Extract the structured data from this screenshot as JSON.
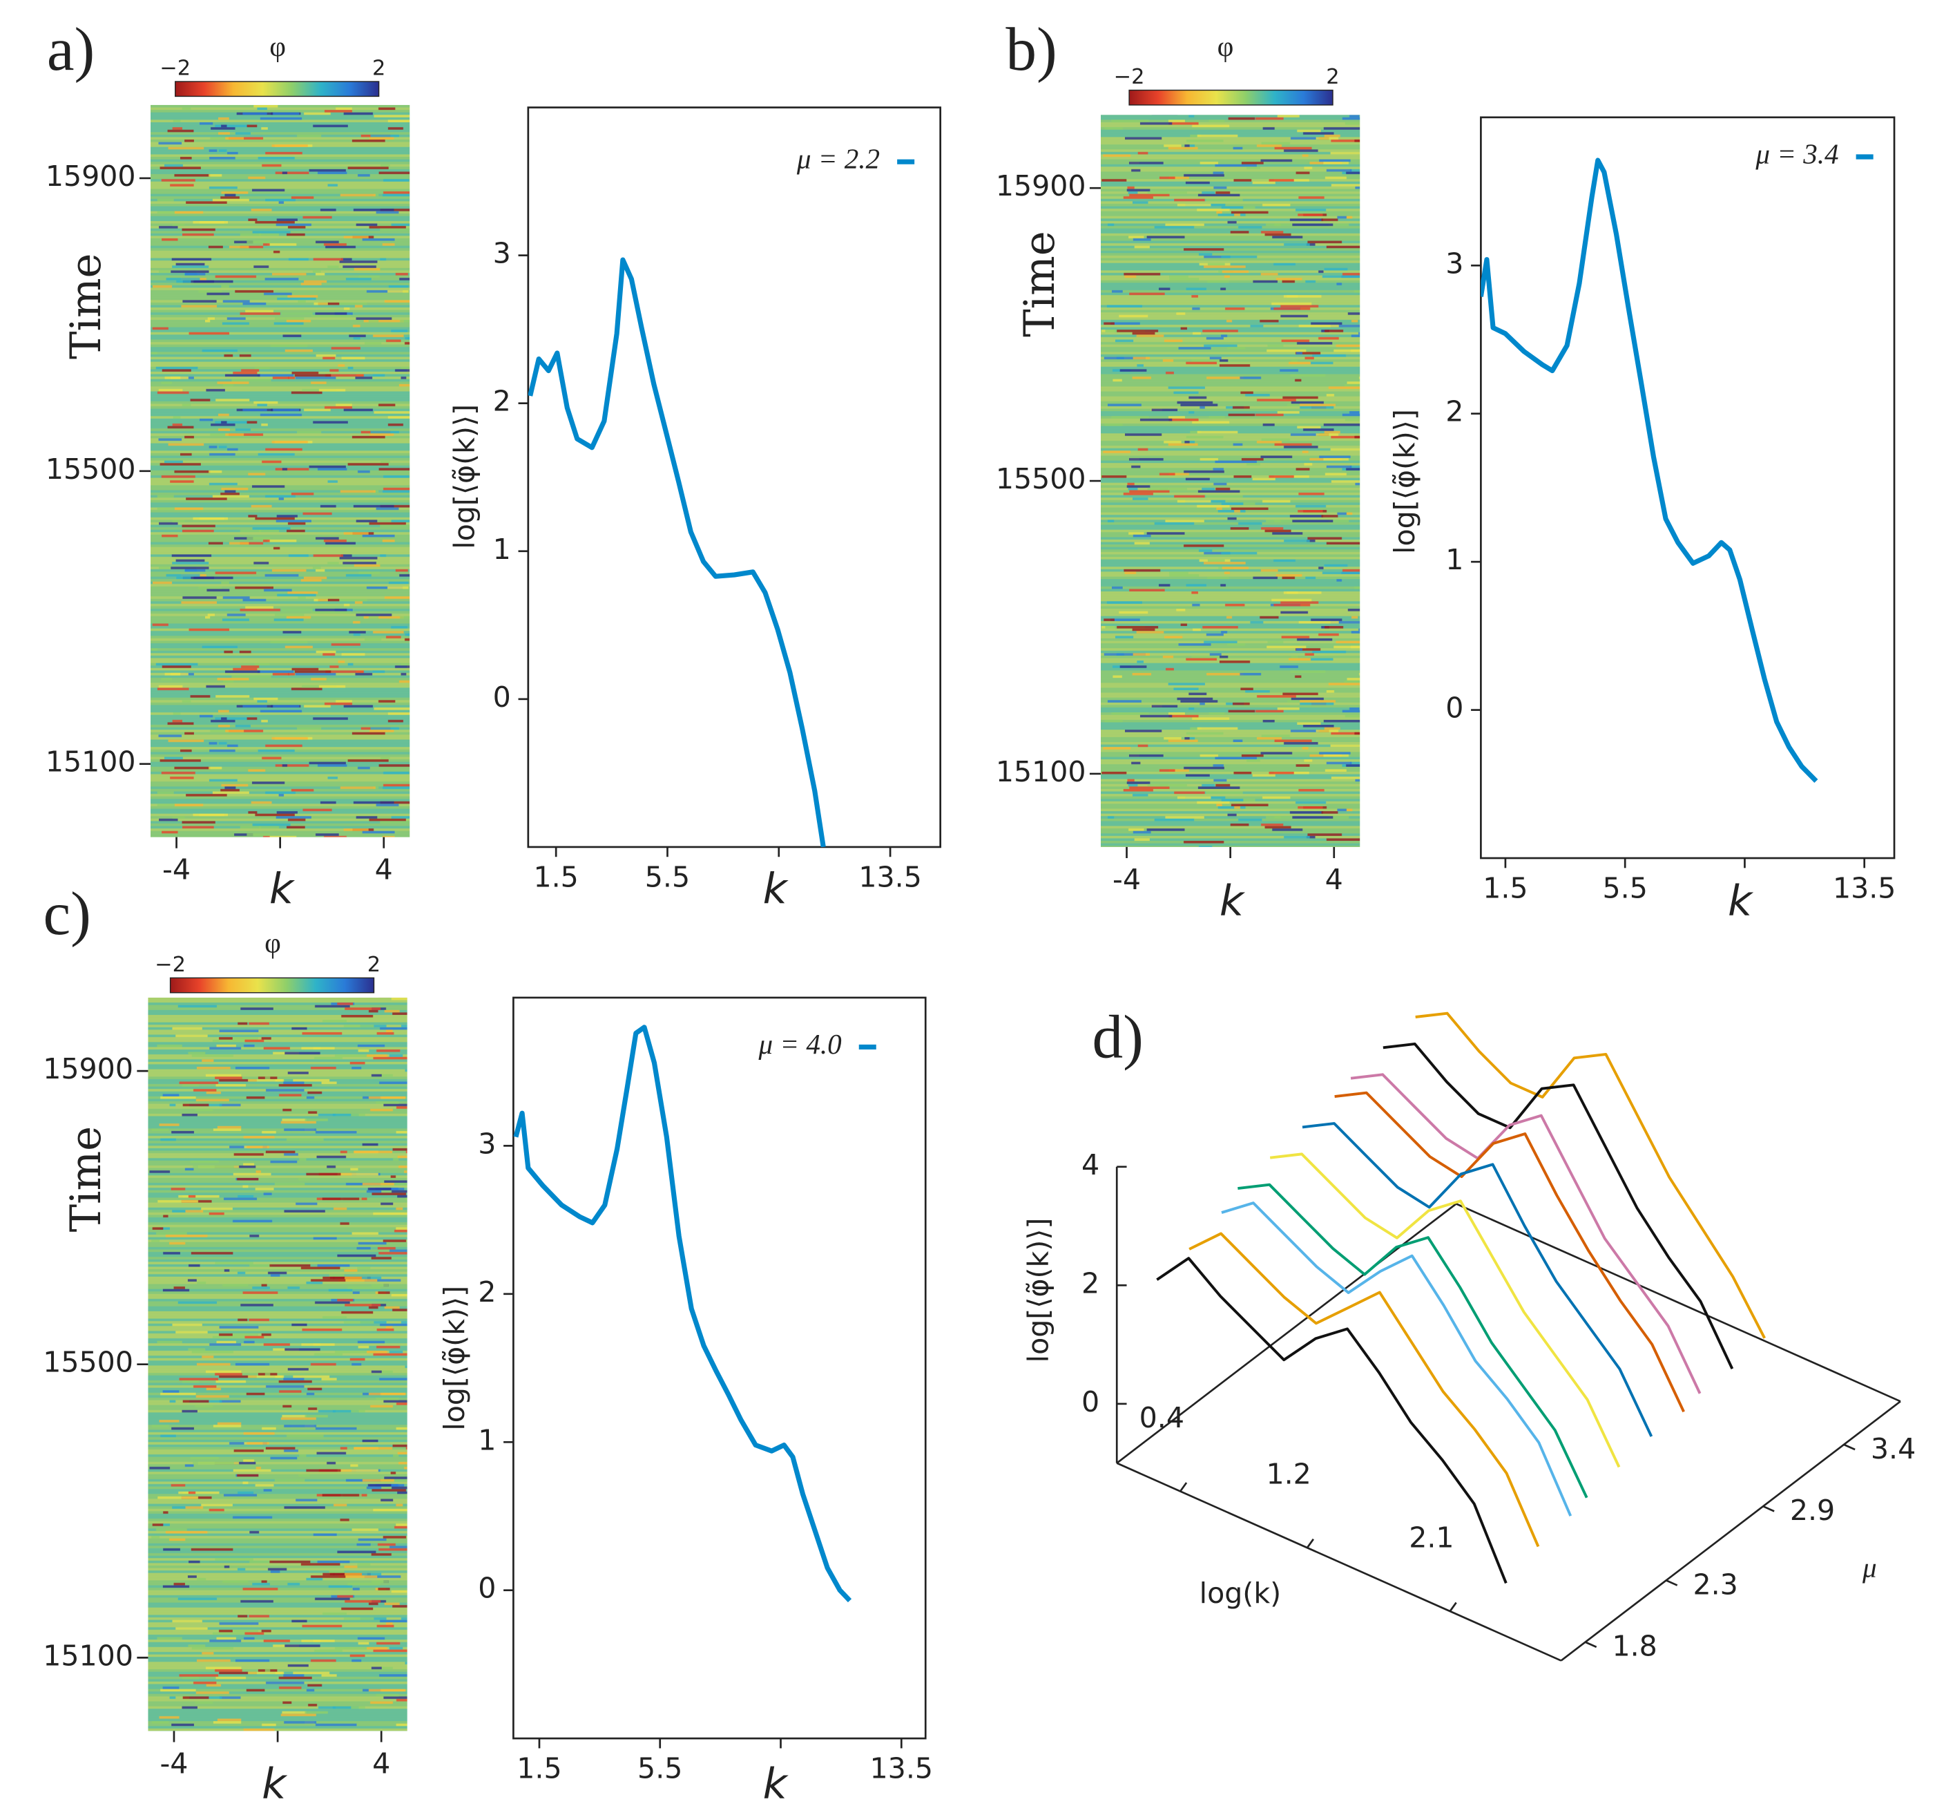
{
  "chart_data": [
    {
      "type": "heatmap",
      "panel_label": "a)",
      "colorbar_title": "φ",
      "clim": [
        -2,
        2
      ],
      "colorbar_ticks": [
        {
          "value": -2,
          "label": "−2"
        },
        2
      ],
      "colormap": [
        "#9e1a1a",
        "#e8432a",
        "#f7b733",
        "#e9e24b",
        "#8fcf6a",
        "#2fb3c8",
        "#2a7bd8",
        "#2b2f8f"
      ],
      "xlabel": "k",
      "xlim": [
        -5,
        5
      ],
      "xticks": [
        -4,
        4
      ],
      "xticks_unlabeled": [
        0
      ],
      "ylabel": "Time",
      "ylim": [
        15000,
        16000
      ],
      "yticks": [
        15900,
        15500,
        15100
      ]
    },
    {
      "type": "line",
      "xlabel": "k",
      "ylabel": "log[⟨φ̃(k)⟩]",
      "xlim": [
        0.5,
        15.3
      ],
      "xticks": [
        1.5,
        5.5,
        13.5
      ],
      "xticks_unlabeled": [
        9.5
      ],
      "ylim": [
        -1,
        4
      ],
      "yticks": [
        0,
        1,
        2,
        3
      ],
      "legend": "upper right",
      "series": [
        {
          "name": "μ = 2.2",
          "color": "#0088cc",
          "x": [
            0.57,
            0.88,
            1.23,
            1.54,
            1.9,
            2.26,
            2.79,
            3.23,
            3.68,
            3.9,
            4.21,
            4.57,
            5.01,
            5.46,
            5.9,
            6.34,
            6.79,
            7.23,
            7.9,
            8.57,
            9.01,
            9.46,
            9.9,
            10.34,
            10.79,
            11.1
          ],
          "values": [
            2.05,
            2.3,
            2.22,
            2.34,
            1.97,
            1.76,
            1.7,
            1.88,
            2.47,
            2.97,
            2.84,
            2.51,
            2.13,
            1.8,
            1.47,
            1.13,
            0.93,
            0.83,
            0.84,
            0.86,
            0.72,
            0.47,
            0.18,
            -0.2,
            -0.62,
            -1.0
          ]
        }
      ]
    },
    {
      "type": "heatmap",
      "panel_label": "b)",
      "colorbar_title": "φ",
      "clim": [
        -2,
        2
      ],
      "colorbar_ticks": [
        {
          "value": -2,
          "label": "−2"
        },
        2
      ],
      "colormap": [
        "#9e1a1a",
        "#e8432a",
        "#f7b733",
        "#e9e24b",
        "#8fcf6a",
        "#2fb3c8",
        "#2a7bd8",
        "#2b2f8f"
      ],
      "xlabel": "k",
      "xlim": [
        -5,
        5
      ],
      "xticks": [
        -4,
        4
      ],
      "xticks_unlabeled": [
        0
      ],
      "ylabel": "Time",
      "ylim": [
        15000,
        16000
      ],
      "yticks": [
        15900,
        15500,
        15100
      ]
    },
    {
      "type": "line",
      "xlabel": "k",
      "ylabel": "log[⟨φ̃(k)⟩]",
      "xlim": [
        0.68,
        14.5
      ],
      "xticks": [
        1.5,
        5.5,
        13.5
      ],
      "xticks_unlabeled": [
        9.5
      ],
      "ylim": [
        -1,
        4
      ],
      "yticks": [
        0,
        1,
        2,
        3
      ],
      "legend": "upper right",
      "series": [
        {
          "name": "μ = 3.4",
          "color": "#0088cc",
          "x": [
            0.68,
            0.88,
            1.09,
            1.5,
            2.12,
            2.74,
            3.07,
            3.56,
            3.97,
            4.39,
            4.59,
            4.8,
            5.21,
            5.62,
            6.04,
            6.45,
            6.86,
            7.27,
            7.77,
            8.3,
            8.72,
            9.0,
            9.34,
            9.75,
            10.16,
            10.57,
            10.98,
            11.4,
            11.89
          ],
          "values": [
            2.79,
            3.04,
            2.58,
            2.54,
            2.42,
            2.33,
            2.29,
            2.46,
            2.88,
            3.46,
            3.71,
            3.63,
            3.21,
            2.71,
            2.21,
            1.71,
            1.29,
            1.13,
            0.99,
            1.04,
            1.13,
            1.08,
            0.88,
            0.54,
            0.21,
            -0.08,
            -0.25,
            -0.38,
            -0.48
          ]
        }
      ]
    },
    {
      "type": "heatmap",
      "panel_label": "c)",
      "colorbar_title": "φ",
      "clim": [
        -2,
        2
      ],
      "colorbar_ticks": [
        {
          "value": -2,
          "label": "−2"
        },
        2
      ],
      "colormap": [
        "#9e1a1a",
        "#e8432a",
        "#f7b733",
        "#e9e24b",
        "#8fcf6a",
        "#2fb3c8",
        "#2a7bd8",
        "#2b2f8f"
      ],
      "xlabel": "k",
      "xlim": [
        -5,
        5
      ],
      "xticks": [
        -4,
        4
      ],
      "xticks_unlabeled": [
        0
      ],
      "ylabel": "Time",
      "ylim": [
        15000,
        16000
      ],
      "yticks": [
        15900,
        15500,
        15100
      ]
    },
    {
      "type": "line",
      "xlabel": "k",
      "ylabel": "log[⟨φ̃(k)⟩]",
      "xlim": [
        0.64,
        14.3
      ],
      "xticks": [
        1.5,
        5.5,
        13.5
      ],
      "xticks_unlabeled": [
        9.5
      ],
      "ylim": [
        -1,
        4
      ],
      "yticks": [
        0,
        1,
        2,
        3
      ],
      "legend": "upper right",
      "series": [
        {
          "name": "μ = 4.0",
          "color": "#0088cc",
          "x": [
            0.72,
            0.93,
            1.13,
            1.62,
            2.24,
            2.85,
            3.26,
            3.67,
            4.08,
            4.41,
            4.7,
            4.98,
            5.31,
            5.72,
            6.13,
            6.54,
            6.95,
            7.36,
            7.77,
            8.18,
            8.67,
            9.2,
            9.61,
            9.9,
            10.23,
            10.64,
            11.05,
            11.46,
            11.79
          ],
          "values": [
            3.06,
            3.22,
            2.85,
            2.73,
            2.6,
            2.52,
            2.48,
            2.6,
            2.98,
            3.39,
            3.76,
            3.8,
            3.56,
            3.06,
            2.39,
            1.9,
            1.65,
            1.48,
            1.32,
            1.15,
            0.98,
            0.94,
            0.98,
            0.9,
            0.65,
            0.4,
            0.15,
            0.0,
            -0.07
          ]
        }
      ]
    },
    {
      "type": "waterfall3d",
      "panel_label": "d)",
      "xlabel": "log(k)",
      "ylabel": "μ",
      "zlabel": "log[⟨φ̃(k)⟩]",
      "xlim": [
        0,
        2.8
      ],
      "xticks": [
        0.4,
        1.2,
        2.1
      ],
      "ylim": [
        1.65,
        3.75
      ],
      "yticks": [
        1.8,
        2.3,
        2.9,
        3.4
      ],
      "zlim": [
        -1,
        4
      ],
      "zticks": [
        0,
        2,
        4
      ],
      "x": [
        0.1,
        0.3,
        0.5,
        0.7,
        0.9,
        1.1,
        1.3,
        1.5,
        1.7,
        1.9,
        2.1,
        2.3
      ],
      "series": [
        {
          "mu": 1.8,
          "color": "#111111",
          "values": [
            1.9,
            2.5,
            2.1,
            1.8,
            1.5,
            2.1,
            2.5,
            2.0,
            1.4,
            1.0,
            0.5,
            -0.6
          ]
        },
        {
          "mu": 2.0,
          "color": "#e69f00",
          "values": [
            2.0,
            2.5,
            2.2,
            1.9,
            1.7,
            2.2,
            2.7,
            2.1,
            1.5,
            1.1,
            0.6,
            -0.4
          ]
        },
        {
          "mu": 2.2,
          "color": "#56b4e9",
          "values": [
            2.2,
            2.6,
            2.3,
            2.0,
            1.8,
            2.4,
            2.9,
            2.3,
            1.6,
            1.2,
            0.7,
            -0.3
          ]
        },
        {
          "mu": 2.3,
          "color": "#009e73",
          "values": [
            2.4,
            2.7,
            2.4,
            2.1,
            1.9,
            2.6,
            3.0,
            2.4,
            1.7,
            1.2,
            0.7,
            -0.2
          ]
        },
        {
          "mu": 2.5,
          "color": "#f0e442",
          "values": [
            2.5,
            2.8,
            2.5,
            2.2,
            2.1,
            2.8,
            3.2,
            2.5,
            1.8,
            1.3,
            0.8,
            -0.1
          ]
        },
        {
          "mu": 2.7,
          "color": "#0072b2",
          "values": [
            2.6,
            2.9,
            2.6,
            2.3,
            2.2,
            3.0,
            3.4,
            2.6,
            1.9,
            1.4,
            0.9,
            0.0
          ]
        },
        {
          "mu": 2.9,
          "color": "#d55e00",
          "values": [
            2.7,
            3.0,
            2.7,
            2.4,
            2.3,
            3.1,
            3.5,
            2.7,
            2.0,
            1.4,
            0.9,
            0.0
          ]
        },
        {
          "mu": 3.0,
          "color": "#cc79a7",
          "values": [
            2.8,
            3.1,
            2.8,
            2.5,
            2.4,
            3.2,
            3.6,
            2.8,
            2.0,
            1.5,
            1.0,
            0.1
          ]
        },
        {
          "mu": 3.2,
          "color": "#111111",
          "values": [
            2.9,
            3.2,
            2.8,
            2.5,
            2.5,
            3.4,
            3.7,
            2.9,
            2.1,
            1.5,
            1.0,
            0.1
          ]
        },
        {
          "mu": 3.4,
          "color": "#e69f00",
          "values": [
            3.0,
            3.3,
            2.9,
            2.6,
            2.6,
            3.5,
            3.8,
            3.0,
            2.2,
            1.6,
            1.0,
            0.2
          ]
        }
      ]
    }
  ]
}
